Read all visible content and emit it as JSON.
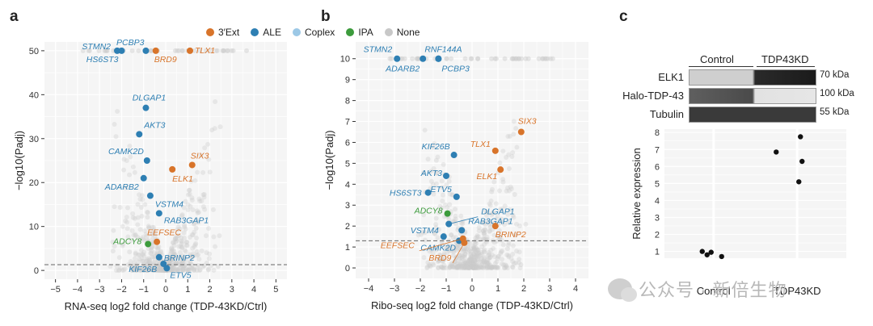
{
  "figure": {
    "panel_letters": [
      "a",
      "b",
      "c"
    ],
    "legend": [
      {
        "label": "3′Ext",
        "color": "#d8742a"
      },
      {
        "label": "ALE",
        "color": "#2e7fb3"
      },
      {
        "label": "Coplex",
        "color": "#9cc8e6"
      },
      {
        "label": "IPA",
        "color": "#3c9b3c"
      },
      {
        "label": "None",
        "color": "#c8c8c8"
      }
    ],
    "watermark": "公众号 · 新倍生物"
  },
  "chart_data": [
    {
      "type": "scatter",
      "id": "volcano-rnaseq",
      "title": "",
      "xlabel": "RNA-seq log2 fold change (TDP-43KD/Ctrl)",
      "ylabel": "−log10(Padj)",
      "xlim": [
        -5.5,
        5.5
      ],
      "ylim": [
        -2,
        52
      ],
      "xticks": [
        -5,
        -4,
        -3,
        -2,
        -1,
        0,
        1,
        2,
        3,
        4,
        5
      ],
      "yticks": [
        0,
        10,
        20,
        30,
        40,
        50
      ],
      "threshold_y": 1.3,
      "points": [
        {
          "label": "STMN2",
          "x": -2.2,
          "y": 50,
          "cat": "ALE"
        },
        {
          "label": "HS6ST3",
          "x": -2.0,
          "y": 50,
          "cat": "ALE"
        },
        {
          "label": "PCBP3",
          "x": -0.9,
          "y": 50,
          "cat": "ALE"
        },
        {
          "label": "BRD9",
          "x": -0.45,
          "y": 50,
          "cat": "3′Ext"
        },
        {
          "label": "TLX1",
          "x": 1.1,
          "y": 50,
          "cat": "3′Ext"
        },
        {
          "label": "DLGAP1",
          "x": -0.9,
          "y": 37,
          "cat": "ALE"
        },
        {
          "label": "AKT3",
          "x": -1.2,
          "y": 31,
          "cat": "ALE"
        },
        {
          "label": "CAMK2D",
          "x": -0.85,
          "y": 25,
          "cat": "ALE"
        },
        {
          "label": "SIX3",
          "x": 1.2,
          "y": 24,
          "cat": "3′Ext"
        },
        {
          "label": "ELK1",
          "x": 0.3,
          "y": 23,
          "cat": "3′Ext"
        },
        {
          "label": "ADARB2",
          "x": -1.0,
          "y": 21,
          "cat": "ALE"
        },
        {
          "label": "VSTM4",
          "x": -0.7,
          "y": 17,
          "cat": "ALE"
        },
        {
          "label": "RAB3GAP1",
          "x": -0.3,
          "y": 13,
          "cat": "ALE"
        },
        {
          "label": "EEFSEC",
          "x": -0.4,
          "y": 6.5,
          "cat": "3′Ext"
        },
        {
          "label": "ADCY8",
          "x": -0.8,
          "y": 6,
          "cat": "IPA"
        },
        {
          "label": "BRINP2",
          "x": -0.3,
          "y": 3,
          "cat": "ALE"
        },
        {
          "label": "KIF26B",
          "x": -0.1,
          "y": 1.5,
          "cat": "ALE"
        },
        {
          "label": "ETV5",
          "x": 0.05,
          "y": 0.5,
          "cat": "ALE"
        }
      ],
      "label_texts": [
        "STMN2",
        "PCBP3",
        "TLX1",
        "HS6ST3",
        "BRD9",
        "DLGAP1",
        "AKT3",
        "CAMK2D",
        "SIX3",
        "ADARB2",
        "ELK1",
        "VSTM4",
        "RAB3GAP1",
        "EEFSEC",
        "ADCY8",
        "BRINP2",
        "KIF26B",
        "ETV5"
      ]
    },
    {
      "type": "scatter",
      "id": "volcano-riboseq",
      "title": "",
      "xlabel": "Ribo-seq log2 fold change (TDP-43KD/Ctrl)",
      "ylabel": "−log10(Padj)",
      "xlim": [
        -4.5,
        4.5
      ],
      "ylim": [
        -0.5,
        10.8
      ],
      "xticks": [
        -4,
        -3,
        -2,
        -1,
        0,
        1,
        2,
        3,
        4
      ],
      "yticks": [
        0,
        1,
        2,
        3,
        4,
        5,
        6,
        7,
        8,
        9,
        10
      ],
      "threshold_y": 1.3,
      "points": [
        {
          "label": "STMN2",
          "x": -2.9,
          "y": 10,
          "cat": "ALE"
        },
        {
          "label": "ADARB2",
          "x": -1.9,
          "y": 10,
          "cat": "ALE"
        },
        {
          "label": "RNF144A",
          "x": -1.3,
          "y": 10,
          "cat": "ALE"
        },
        {
          "label": "PCBP3",
          "x": -1.3,
          "y": 10,
          "cat": "ALE"
        },
        {
          "label": "SIX3",
          "x": 1.9,
          "y": 6.5,
          "cat": "3′Ext"
        },
        {
          "label": "TLX1",
          "x": 0.9,
          "y": 5.6,
          "cat": "3′Ext"
        },
        {
          "label": "KIF26B",
          "x": -0.7,
          "y": 5.4,
          "cat": "ALE"
        },
        {
          "label": "ELK1",
          "x": 1.1,
          "y": 4.7,
          "cat": "3′Ext"
        },
        {
          "label": "AKT3",
          "x": -1.0,
          "y": 4.4,
          "cat": "ALE"
        },
        {
          "label": "ETV5",
          "x": -0.6,
          "y": 3.4,
          "cat": "ALE"
        },
        {
          "label": "HS6ST3",
          "x": -1.7,
          "y": 3.6,
          "cat": "ALE"
        },
        {
          "label": "ADCY8",
          "x": -0.95,
          "y": 2.6,
          "cat": "IPA"
        },
        {
          "label": "DLGAP1",
          "x": -0.9,
          "y": 2.1,
          "cat": "ALE"
        },
        {
          "label": "RAB3GAP1",
          "x": -0.4,
          "y": 1.8,
          "cat": "ALE"
        },
        {
          "label": "BRINP2",
          "x": 0.9,
          "y": 2.0,
          "cat": "3′Ext"
        },
        {
          "label": "VSTM4",
          "x": -1.1,
          "y": 1.5,
          "cat": "ALE"
        },
        {
          "label": "CAMK2D",
          "x": -0.5,
          "y": 1.3,
          "cat": "ALE"
        },
        {
          "label": "EEFSEC",
          "x": -0.35,
          "y": 1.4,
          "cat": "3′Ext"
        },
        {
          "label": "BRD9",
          "x": -0.3,
          "y": 1.2,
          "cat": "3′Ext"
        }
      ],
      "label_texts": [
        "STMN2",
        "RNF144A",
        "ADARB2",
        "PCBP3",
        "SIX3",
        "TLX1",
        "KIF26B",
        "ELK1",
        "AKT3",
        "HS6ST3",
        "ETV5",
        "ADCY8",
        "DLGAP1",
        "RAB3GAP1",
        "BRINP2",
        "VSTM4",
        "EEFSEC",
        "CAMK2D",
        "BRD9"
      ]
    },
    {
      "type": "scatter",
      "id": "relative-expression",
      "title": "",
      "xlabel": "",
      "ylabel": "Relative expression",
      "categories": [
        "Control",
        "TDP43KD"
      ],
      "ylim": [
        0.6,
        8.2
      ],
      "yticks": [
        1,
        2,
        3,
        4,
        5,
        6,
        7,
        8
      ],
      "series": [
        {
          "name": "Control",
          "values": [
            1.0,
            0.8,
            0.95,
            0.7
          ]
        },
        {
          "name": "TDP43KD",
          "values": [
            6.85,
            7.75,
            6.3,
            5.1
          ]
        }
      ]
    }
  ],
  "blot": {
    "group_labels": [
      "Control",
      "TDP43KD"
    ],
    "rows": [
      {
        "label": "ELK1",
        "kda": "70 kDa"
      },
      {
        "label": "Halo-TDP-43",
        "kda": "100 kDa"
      },
      {
        "label": "Tubulin",
        "kda": "55 kDa"
      }
    ]
  }
}
